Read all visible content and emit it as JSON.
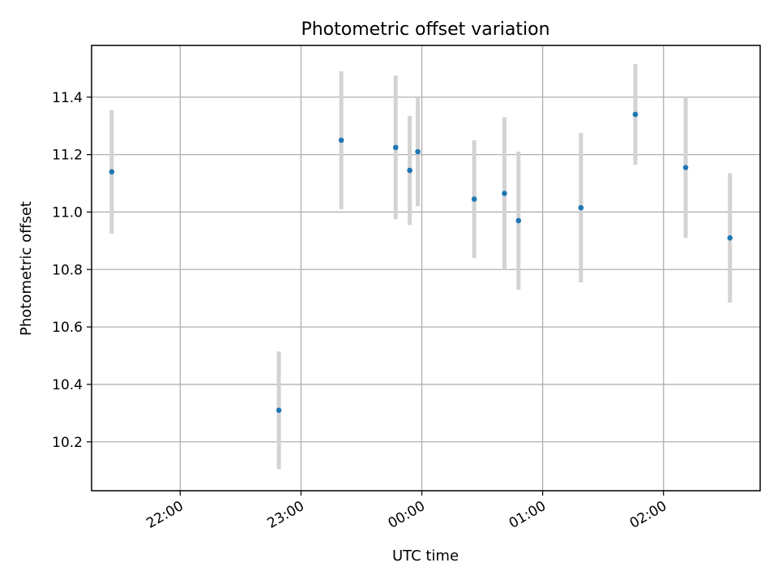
{
  "chart_data": {
    "type": "scatter",
    "title": "Photometric offset variation",
    "xlabel": "UTC time",
    "ylabel": "Photometric offset",
    "x_axis": {
      "ticks": [
        {
          "time": "22:00",
          "label": "22:00"
        },
        {
          "time": "23:00",
          "label": "23:00"
        },
        {
          "time": "00:00",
          "label": "00:00"
        },
        {
          "time": "01:00",
          "label": "01:00"
        },
        {
          "time": "02:00",
          "label": "02:00"
        }
      ],
      "range": [
        "21:16",
        "02:48"
      ],
      "tick_label_rotation_deg": 30
    },
    "y_axis": {
      "ticks": [
        10.2,
        10.4,
        10.6,
        10.8,
        11.0,
        11.2,
        11.4
      ],
      "range": [
        10.03,
        11.58
      ]
    },
    "grid": true,
    "colors": {
      "point": "#1f77b4",
      "errorbar": "#d3d3d3",
      "grid": "#b0b0b0"
    },
    "points": [
      {
        "time": "21:26",
        "y": 11.14,
        "err": 0.215
      },
      {
        "time": "22:49",
        "y": 10.31,
        "err": 0.205
      },
      {
        "time": "23:20",
        "y": 11.25,
        "err": 0.24
      },
      {
        "time": "23:47",
        "y": 11.225,
        "err": 0.25
      },
      {
        "time": "23:54",
        "y": 11.145,
        "err": 0.19
      },
      {
        "time": "23:58",
        "y": 11.21,
        "err": 0.19
      },
      {
        "time": "00:26",
        "y": 11.045,
        "err": 0.205
      },
      {
        "time": "00:41",
        "y": 11.065,
        "err": 0.265
      },
      {
        "time": "00:48",
        "y": 10.97,
        "err": 0.24
      },
      {
        "time": "01:19",
        "y": 11.015,
        "err": 0.26
      },
      {
        "time": "01:46",
        "y": 11.34,
        "err": 0.175
      },
      {
        "time": "02:11",
        "y": 11.155,
        "err": 0.245
      },
      {
        "time": "02:33",
        "y": 10.91,
        "err": 0.225
      }
    ]
  }
}
